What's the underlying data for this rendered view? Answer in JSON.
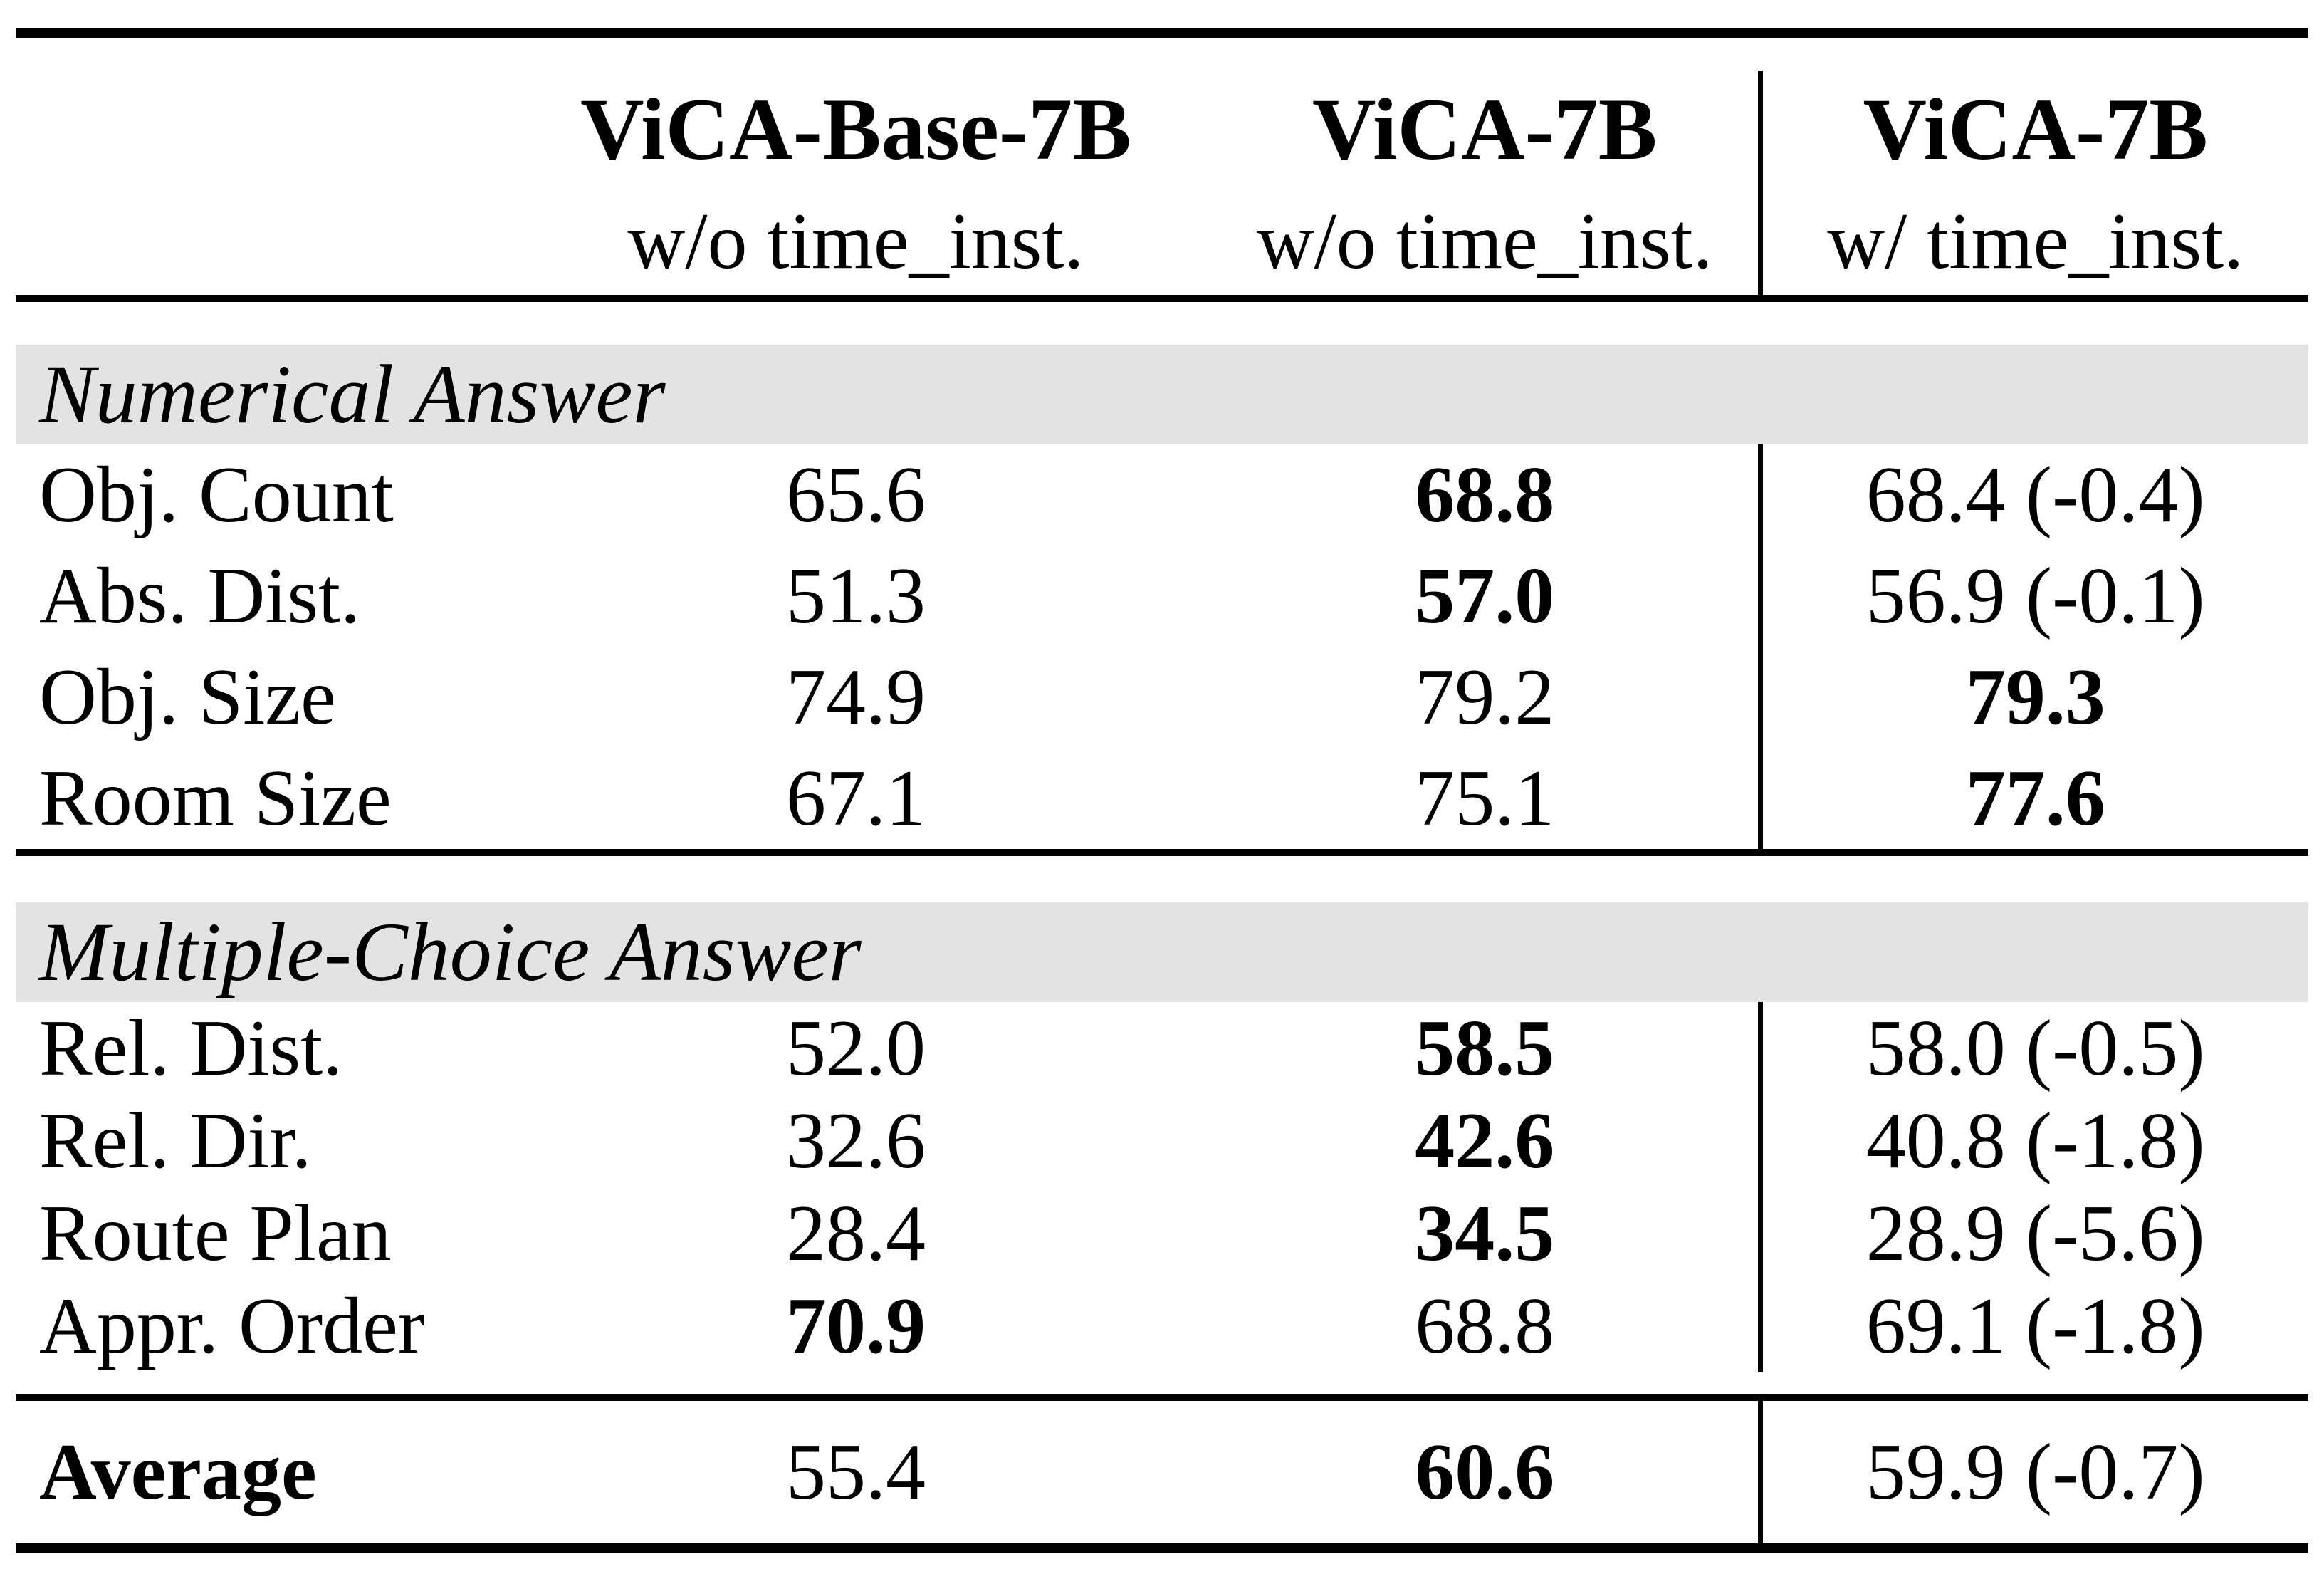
{
  "table": {
    "columns": [
      {
        "title": "",
        "subtitle": ""
      },
      {
        "title": "ViCA-Base-7B",
        "subtitle": "w/o time_inst."
      },
      {
        "title": "ViCA-7B",
        "subtitle": "w/o time_inst."
      },
      {
        "title": "ViCA-7B",
        "subtitle": "w/ time_inst."
      }
    ],
    "sections": [
      {
        "header": "Numerical Answer",
        "rows": [
          {
            "label": "Obj. Count",
            "values": [
              "65.6",
              "68.8",
              "68.4 (-0.4)"
            ],
            "bold_value_index": 1
          },
          {
            "label": "Abs. Dist.",
            "values": [
              "51.3",
              "57.0",
              "56.9 (-0.1)"
            ],
            "bold_value_index": 1
          },
          {
            "label": "Obj. Size",
            "values": [
              "74.9",
              "79.2",
              "79.3"
            ],
            "bold_value_index": 2
          },
          {
            "label": "Room Size",
            "values": [
              "67.1",
              "75.1",
              "77.6"
            ],
            "bold_value_index": 2
          }
        ]
      },
      {
        "header": "Multiple-Choice Answer",
        "rows": [
          {
            "label": "Rel. Dist.",
            "values": [
              "52.0",
              "58.5",
              "58.0 (-0.5)"
            ],
            "bold_value_index": 1
          },
          {
            "label": "Rel. Dir.",
            "values": [
              "32.6",
              "42.6",
              "40.8 (-1.8)"
            ],
            "bold_value_index": 1
          },
          {
            "label": "Route Plan",
            "values": [
              "28.4",
              "34.5",
              "28.9 (-5.6)"
            ],
            "bold_value_index": 1
          },
          {
            "label": "Appr. Order",
            "values": [
              "70.9",
              "68.8",
              "69.1 (-1.8)"
            ],
            "bold_value_index": 0
          }
        ]
      }
    ],
    "footer": {
      "label": "Average",
      "values": [
        "55.4",
        "60.6",
        "59.9 (-0.7)"
      ],
      "bold_value_index": 1
    }
  },
  "colors": {
    "section_band_background": "#e3e3e3",
    "rule": "#000000",
    "text": "#000000",
    "page_background": "#ffffff"
  }
}
